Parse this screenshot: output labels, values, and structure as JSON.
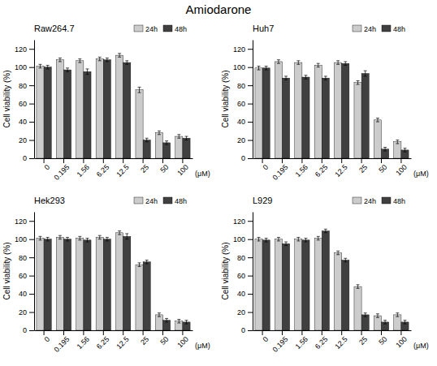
{
  "title": "Amiodarone",
  "chart_data": [
    {
      "type": "bar",
      "title": "Raw264.7",
      "categories": [
        "0",
        "0.195",
        "1.56",
        "6.25",
        "12.5",
        "25",
        "50",
        "100"
      ],
      "series": [
        {
          "name": "24h",
          "color": "#cccccc",
          "values": [
            101,
            108,
            107,
            109,
            113,
            75,
            28,
            24
          ],
          "errors": [
            2,
            2,
            2,
            2,
            2,
            3,
            2,
            2
          ]
        },
        {
          "name": "48h",
          "color": "#404040",
          "values": [
            100,
            97,
            95,
            108,
            105,
            20,
            17,
            22
          ],
          "errors": [
            2,
            2,
            3,
            2,
            2,
            2,
            2,
            2
          ]
        }
      ],
      "ylabel": "Cell viability (%)",
      "xlabel": "(μM)",
      "ylim": [
        0,
        130
      ],
      "yticks": [
        0,
        20,
        40,
        60,
        80,
        100,
        120
      ],
      "grid": false,
      "legend": "upper right"
    },
    {
      "type": "bar",
      "title": "Huh7",
      "categories": [
        "0",
        "0.195",
        "1.56",
        "6.25",
        "12.5",
        "25",
        "50",
        "100"
      ],
      "series": [
        {
          "name": "24h",
          "color": "#cccccc",
          "values": [
            99,
            106,
            105,
            102,
            105,
            83,
            42,
            18
          ],
          "errors": [
            2,
            2,
            2,
            2,
            2,
            2,
            2,
            2
          ]
        },
        {
          "name": "48h",
          "color": "#404040",
          "values": [
            99,
            88,
            89,
            88,
            104,
            93,
            10,
            9
          ],
          "errors": [
            2,
            2,
            2,
            2,
            2,
            3,
            2,
            2
          ]
        }
      ],
      "ylabel": "Cell viability (%)",
      "xlabel": "(μM)",
      "ylim": [
        0,
        130
      ],
      "yticks": [
        0,
        20,
        40,
        60,
        80,
        100,
        120
      ],
      "grid": false,
      "legend": "upper right"
    },
    {
      "type": "bar",
      "title": "Hek293",
      "categories": [
        "0",
        "0.195",
        "1.56",
        "6.25",
        "12.5",
        "25",
        "50",
        "100"
      ],
      "series": [
        {
          "name": "24h",
          "color": "#cccccc",
          "values": [
            101,
            102,
            101,
            102,
            107,
            72,
            17,
            10
          ],
          "errors": [
            2,
            2,
            2,
            2,
            2,
            2,
            2,
            2
          ]
        },
        {
          "name": "48h",
          "color": "#404040",
          "values": [
            100,
            100,
            99,
            100,
            103,
            75,
            11,
            9
          ],
          "errors": [
            2,
            2,
            2,
            2,
            3,
            2,
            2,
            2
          ]
        }
      ],
      "ylabel": "Cell viability (%)",
      "xlabel": "(μM)",
      "ylim": [
        0,
        130
      ],
      "yticks": [
        0,
        20,
        40,
        60,
        80,
        100,
        120
      ],
      "grid": false,
      "legend": "upper right"
    },
    {
      "type": "bar",
      "title": "L929",
      "categories": [
        "0",
        "0.195",
        "1.56",
        "6.25",
        "12.5",
        "25",
        "50",
        "100"
      ],
      "series": [
        {
          "name": "24h",
          "color": "#cccccc",
          "values": [
            100,
            100,
            100,
            101,
            85,
            48,
            16,
            17
          ],
          "errors": [
            2,
            2,
            2,
            2,
            2,
            2,
            2,
            2
          ]
        },
        {
          "name": "48h",
          "color": "#404040",
          "values": [
            99,
            95,
            99,
            109,
            77,
            17,
            9,
            9
          ],
          "errors": [
            2,
            2,
            2,
            2,
            2,
            2,
            2,
            2
          ]
        }
      ],
      "ylabel": "Cell viability (%)",
      "xlabel": "(μM)",
      "ylim": [
        0,
        130
      ],
      "yticks": [
        0,
        20,
        40,
        60,
        80,
        100,
        120
      ],
      "grid": false,
      "legend": "upper right"
    }
  ]
}
